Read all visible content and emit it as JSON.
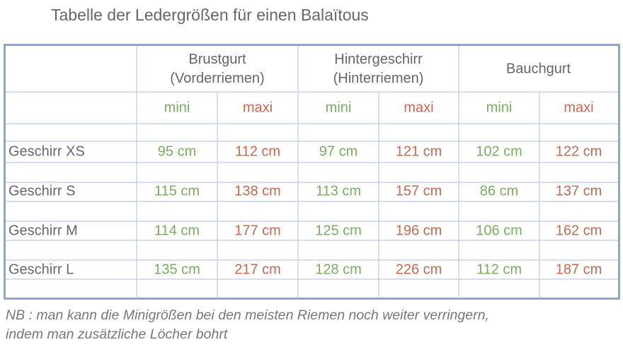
{
  "title": "Tabelle der Ledergrößen für einen Balaïtous",
  "table": {
    "groups": [
      {
        "lines": [
          "Brustgurt",
          "(Vorderriemen)"
        ]
      },
      {
        "lines": [
          "Hintergeschirr",
          "(Hinterriemen)"
        ]
      },
      {
        "lines": [
          "Bauchgurt"
        ]
      }
    ],
    "sub_labels": [
      "mini",
      "maxi",
      "mini",
      "maxi",
      "mini",
      "maxi"
    ],
    "rows": [
      {
        "label": "Geschirr XS",
        "cells": [
          "95 cm",
          "112 cm",
          "97 cm",
          "121 cm",
          "102 cm",
          "122 cm"
        ]
      },
      {
        "label": "Geschirr S",
        "cells": [
          "115 cm",
          "138 cm",
          "113 cm",
          "157 cm",
          "86 cm",
          "137 cm"
        ]
      },
      {
        "label": "Geschirr M",
        "cells": [
          "114 cm",
          "177 cm",
          "125 cm",
          "196 cm",
          "106 cm",
          "162 cm"
        ]
      },
      {
        "label": "Geschirr L",
        "cells": [
          "135 cm",
          "217 cm",
          "128 cm",
          "226 cm",
          "112 cm",
          "187 cm"
        ]
      }
    ]
  },
  "note": {
    "lines": [
      "NB : man kann die Minigrößen bei den meisten Riemen noch weiter verringern,",
      "indem man zusätzliche Löcher bohrt"
    ]
  }
}
